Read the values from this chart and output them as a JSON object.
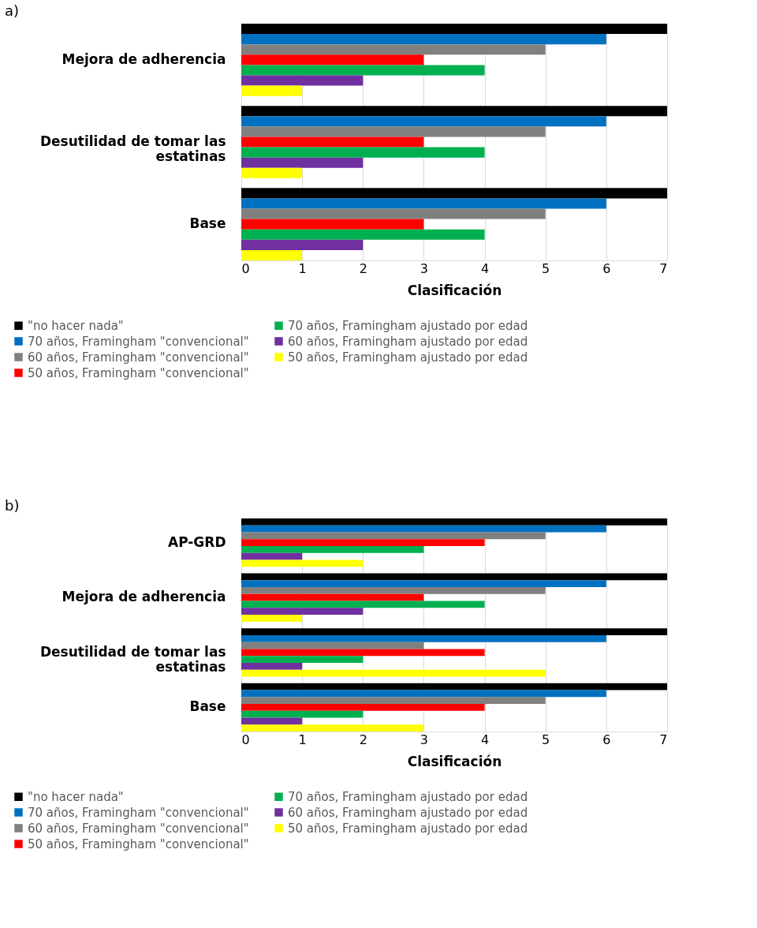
{
  "chart_data": [
    {
      "type": "bar",
      "orientation": "horizontal",
      "title": "a)",
      "xlabel": "Clasificación",
      "categories": [
        "Mejora de adherencia",
        "Desutilidad de tomar las estatinas",
        "Base"
      ],
      "xlim": [
        0,
        7
      ],
      "xticks": [
        0,
        1,
        2,
        3,
        4,
        5,
        6,
        7
      ],
      "grid": "x",
      "legend": "bottom",
      "series": [
        {
          "name": "\"no hacer nada\"",
          "color": "#000000",
          "values": [
            7,
            7,
            7
          ]
        },
        {
          "name": "70 años, Framingham \"convencional\"",
          "color": "#0070c0",
          "values": [
            6,
            6,
            6
          ]
        },
        {
          "name": "60 años, Framingham \"convencional\"",
          "color": "#808080",
          "values": [
            5,
            5,
            5
          ]
        },
        {
          "name": "50 años, Framingham \"convencional\"",
          "color": "#ff0000",
          "values": [
            3,
            3,
            3
          ]
        },
        {
          "name": "70 años, Framingham ajustado por edad",
          "color": "#00b050",
          "values": [
            4,
            4,
            4
          ]
        },
        {
          "name": "60 años, Framingham ajustado por edad",
          "color": "#7030a0",
          "values": [
            2,
            2,
            2
          ]
        },
        {
          "name": "50 años, Framingham ajustado por edad",
          "color": "#ffff00",
          "values": [
            1,
            1,
            1
          ]
        }
      ]
    },
    {
      "type": "bar",
      "orientation": "horizontal",
      "title": "b)",
      "xlabel": "Clasificación",
      "categories": [
        "AP-GRD",
        "Mejora de adherencia",
        "Desutilidad de tomar las estatinas",
        "Base"
      ],
      "xlim": [
        0,
        7
      ],
      "xticks": [
        0,
        1,
        2,
        3,
        4,
        5,
        6,
        7
      ],
      "grid": "x",
      "legend": "bottom",
      "series": [
        {
          "name": "\"no hacer nada\"",
          "color": "#000000",
          "values": [
            7,
            7,
            7,
            7
          ]
        },
        {
          "name": "70 años, Framingham \"convencional\"",
          "color": "#0070c0",
          "values": [
            6,
            6,
            6,
            6
          ]
        },
        {
          "name": "60 años, Framingham \"convencional\"",
          "color": "#808080",
          "values": [
            5,
            5,
            3,
            5
          ]
        },
        {
          "name": "50 años, Framingham \"convencional\"",
          "color": "#ff0000",
          "values": [
            4,
            3,
            4,
            4
          ]
        },
        {
          "name": "70 años, Framingham ajustado por edad",
          "color": "#00b050",
          "values": [
            3,
            4,
            2,
            2
          ]
        },
        {
          "name": "60 años, Framingham ajustado por edad",
          "color": "#7030a0",
          "values": [
            1,
            2,
            1,
            1
          ]
        },
        {
          "name": "50 años, Framingham ajustado por edad",
          "color": "#ffff00",
          "values": [
            2,
            1,
            5,
            3
          ]
        }
      ]
    }
  ]
}
